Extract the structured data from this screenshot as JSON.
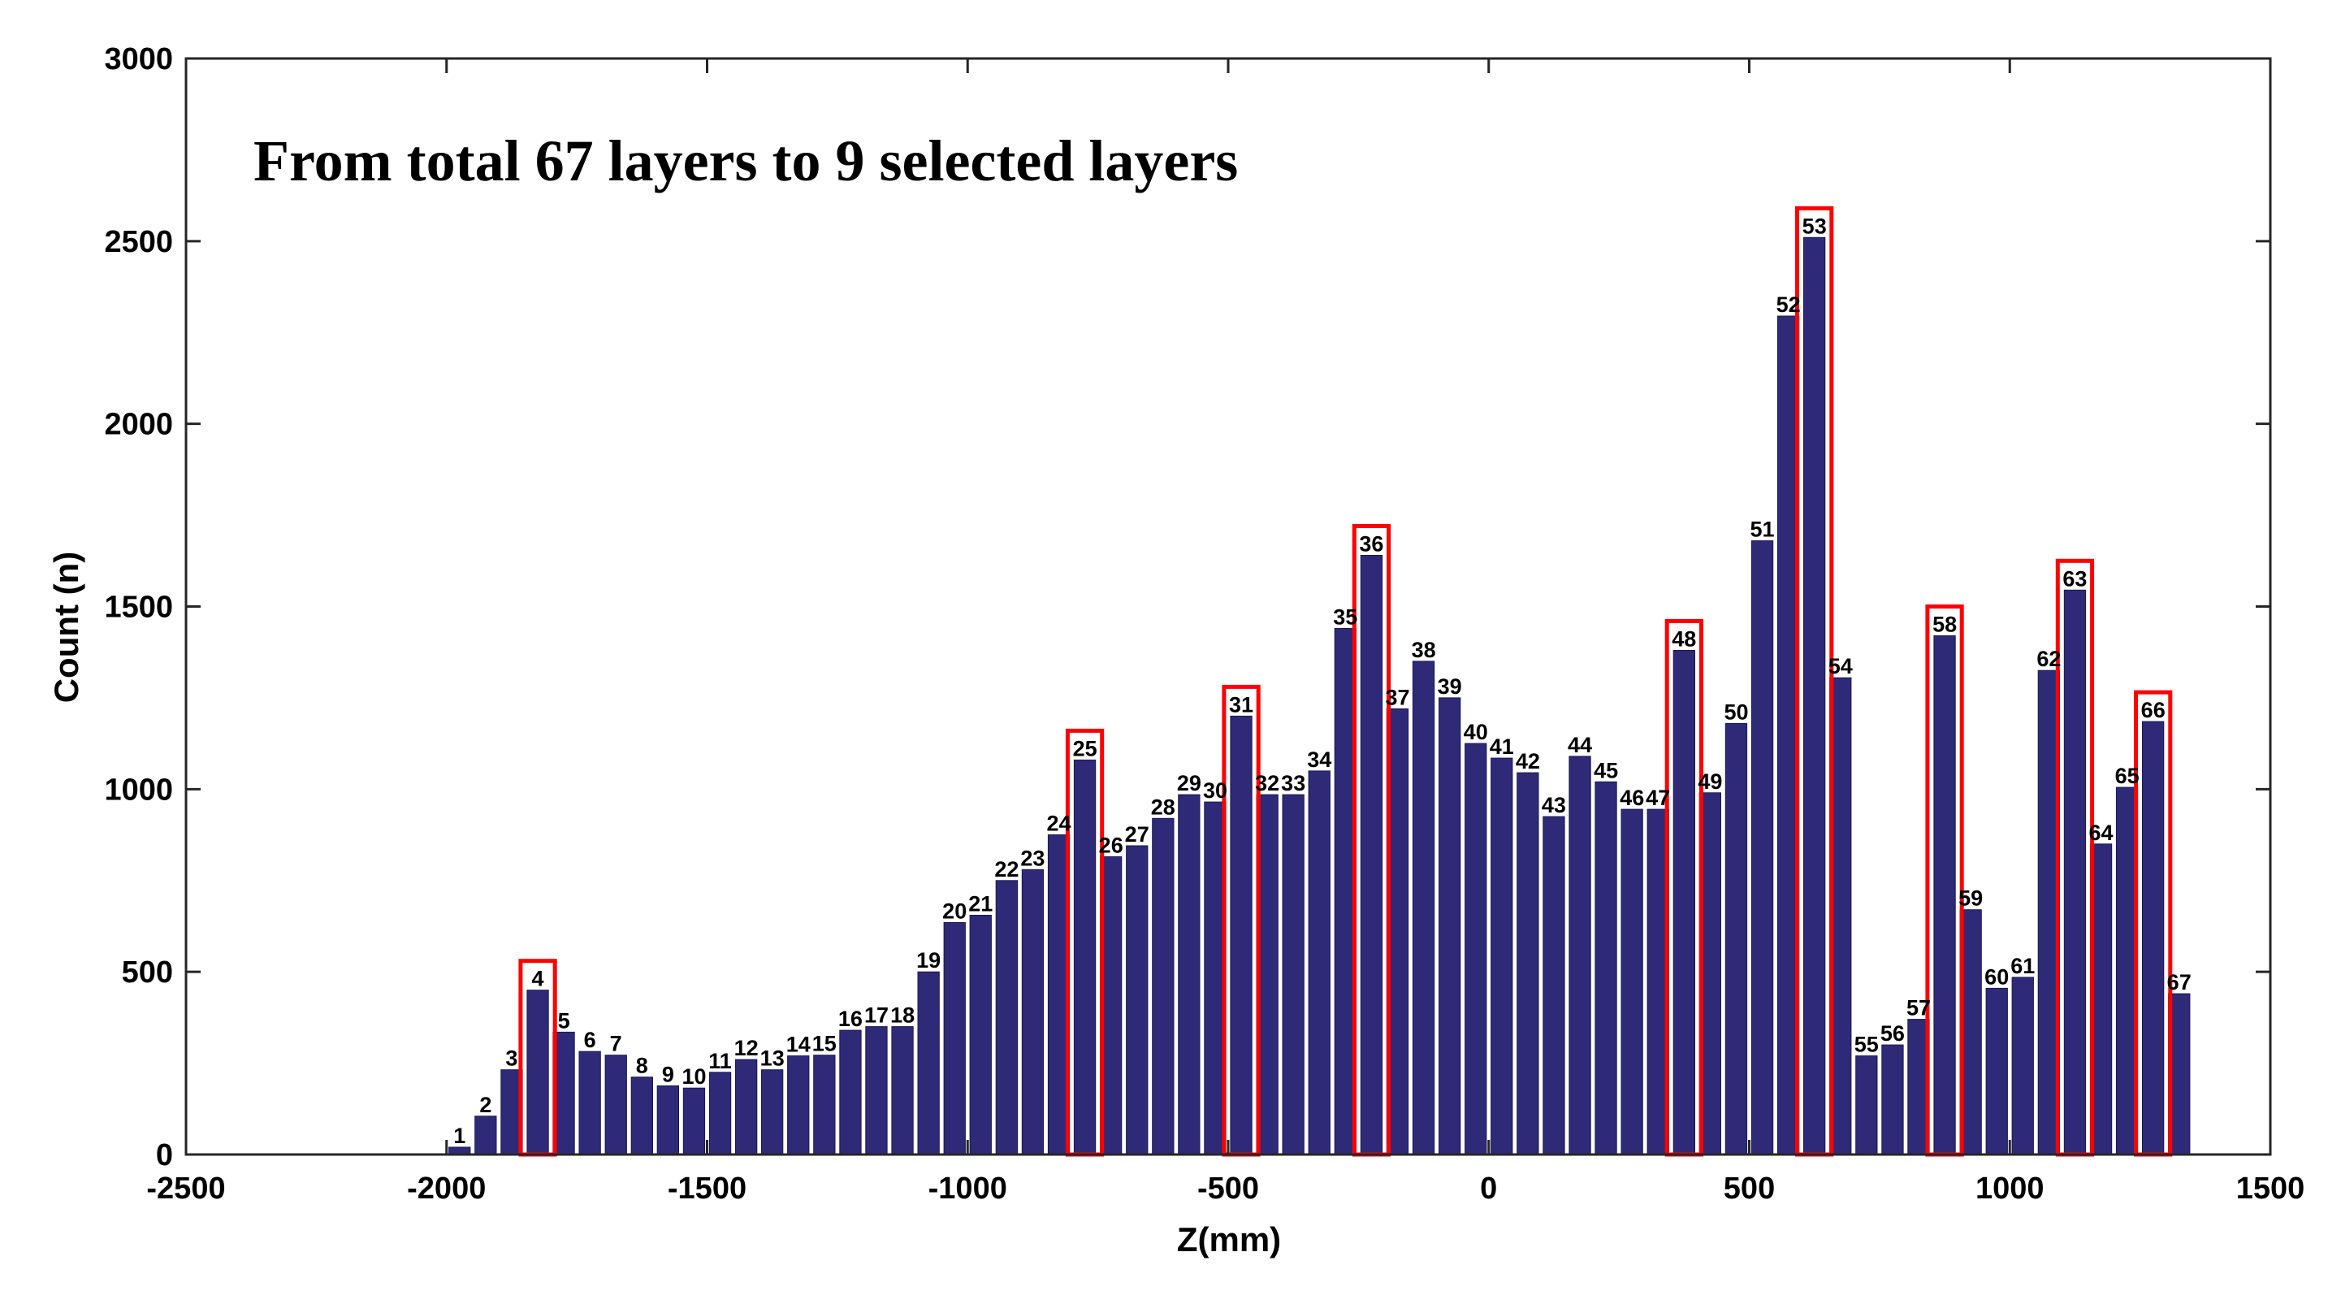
{
  "chart_data": {
    "type": "bar",
    "title": "From total 67 layers to 9 selected layers",
    "xlabel": "Z(mm)",
    "ylabel": "Count (n)",
    "xlim": [
      -2500,
      1500
    ],
    "ylim": [
      0,
      3000
    ],
    "xticks": [
      -2500,
      -2000,
      -1500,
      -1000,
      -500,
      0,
      500,
      1000,
      1500
    ],
    "yticks": [
      0,
      500,
      1000,
      1500,
      2000,
      2500,
      3000
    ],
    "bar_color": "#2e2a78",
    "highlight_color": "#ff0000",
    "layer_start_z": -2000,
    "layer_width": 50,
    "bars": [
      {
        "label": "1",
        "value": 20
      },
      {
        "label": "2",
        "value": 105
      },
      {
        "label": "3",
        "value": 232
      },
      {
        "label": "4",
        "value": 450
      },
      {
        "label": "5",
        "value": 335
      },
      {
        "label": "6",
        "value": 282
      },
      {
        "label": "7",
        "value": 272
      },
      {
        "label": "8",
        "value": 212
      },
      {
        "label": "9",
        "value": 188
      },
      {
        "label": "10",
        "value": 182
      },
      {
        "label": "11",
        "value": 225
      },
      {
        "label": "12",
        "value": 260
      },
      {
        "label": "13",
        "value": 232
      },
      {
        "label": "14",
        "value": 270
      },
      {
        "label": "15",
        "value": 272
      },
      {
        "label": "16",
        "value": 340
      },
      {
        "label": "17",
        "value": 350
      },
      {
        "label": "18",
        "value": 350
      },
      {
        "label": "19",
        "value": 500
      },
      {
        "label": "20",
        "value": 635
      },
      {
        "label": "21",
        "value": 655
      },
      {
        "label": "22",
        "value": 750
      },
      {
        "label": "23",
        "value": 780
      },
      {
        "label": "24",
        "value": 875
      },
      {
        "label": "25",
        "value": 1080
      },
      {
        "label": "26",
        "value": 815
      },
      {
        "label": "27",
        "value": 845
      },
      {
        "label": "28",
        "value": 920
      },
      {
        "label": "29",
        "value": 985
      },
      {
        "label": "30",
        "value": 965
      },
      {
        "label": "31",
        "value": 1200
      },
      {
        "label": "32",
        "value": 985
      },
      {
        "label": "33",
        "value": 985
      },
      {
        "label": "34",
        "value": 1050
      },
      {
        "label": "35",
        "value": 1440
      },
      {
        "label": "36",
        "value": 1640
      },
      {
        "label": "37",
        "value": 1220
      },
      {
        "label": "38",
        "value": 1350
      },
      {
        "label": "39",
        "value": 1250
      },
      {
        "label": "40",
        "value": 1125
      },
      {
        "label": "41",
        "value": 1085
      },
      {
        "label": "42",
        "value": 1045
      },
      {
        "label": "43",
        "value": 925
      },
      {
        "label": "44",
        "value": 1090
      },
      {
        "label": "45",
        "value": 1020
      },
      {
        "label": "46",
        "value": 945
      },
      {
        "label": "47",
        "value": 945
      },
      {
        "label": "48",
        "value": 1380
      },
      {
        "label": "49",
        "value": 990
      },
      {
        "label": "50",
        "value": 1180
      },
      {
        "label": "51",
        "value": 1680
      },
      {
        "label": "52",
        "value": 2295
      },
      {
        "label": "53",
        "value": 2510
      },
      {
        "label": "54",
        "value": 1305
      },
      {
        "label": "55",
        "value": 270
      },
      {
        "label": "56",
        "value": 300
      },
      {
        "label": "57",
        "value": 370
      },
      {
        "label": "58",
        "value": 1420
      },
      {
        "label": "59",
        "value": 670
      },
      {
        "label": "60",
        "value": 455
      },
      {
        "label": "61",
        "value": 485
      },
      {
        "label": "62",
        "value": 1325
      },
      {
        "label": "63",
        "value": 1545
      },
      {
        "label": "64",
        "value": 850
      },
      {
        "label": "65",
        "value": 1005
      },
      {
        "label": "66",
        "value": 1185
      },
      {
        "label": "67",
        "value": 440
      }
    ],
    "selected_layers": [
      "4",
      "25",
      "31",
      "36",
      "48",
      "53",
      "58",
      "63",
      "66"
    ]
  }
}
